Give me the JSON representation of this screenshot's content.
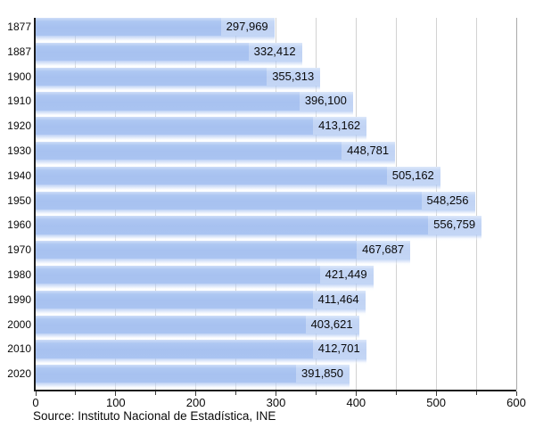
{
  "chart_data": {
    "type": "bar",
    "orientation": "horizontal",
    "title": "",
    "xlabel": "",
    "ylabel": "",
    "categories": [
      "1877",
      "1887",
      "1900",
      "1910",
      "1920",
      "1930",
      "1940",
      "1950",
      "1960",
      "1970",
      "1980",
      "1990",
      "2000",
      "2010",
      "2020"
    ],
    "values": [
      297969,
      332412,
      355313,
      396100,
      413162,
      448781,
      505162,
      548256,
      556759,
      467687,
      421449,
      411464,
      403621,
      412701,
      391850
    ],
    "value_labels": [
      "297,969",
      "332,412",
      "355,313",
      "396,100",
      "413,162",
      "448,781",
      "505,162",
      "548,256",
      "556,759",
      "467,687",
      "421,449",
      "411,464",
      "403,621",
      "412,701",
      "391,850"
    ],
    "x_tick_labels": [
      "0",
      "100",
      "200",
      "300",
      "400",
      "500",
      "600"
    ],
    "x_major_ticks": [
      0,
      100,
      200,
      300,
      400,
      500,
      600
    ],
    "x_minor_step": 50,
    "xlim": [
      0,
      600
    ],
    "axis_value_scale": 1000,
    "grid": true,
    "legend": "none",
    "source": "Source: Instituto Nacional de Estadística, INE",
    "colors": {
      "bar_fill": "#a9c3f1",
      "bar_highlight": "#cfdef8",
      "label_box": "rgba(255,255,255,0.30)",
      "gridline": "#d2d2d2",
      "gridline_edge": "#a9a9a9",
      "axis": "#1a1a1a",
      "text": "#0a0a0a",
      "background": "#ffffff"
    }
  }
}
